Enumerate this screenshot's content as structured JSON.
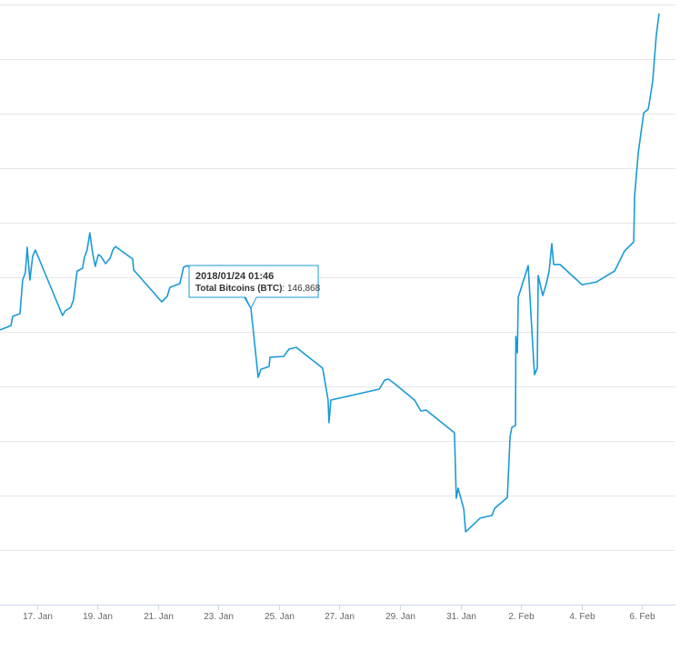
{
  "chart_data": {
    "type": "line",
    "x": [
      15.77,
      16.13,
      16.19,
      16.43,
      16.52,
      16.61,
      16.67,
      16.76,
      16.85,
      16.94,
      17.84,
      17.93,
      18.11,
      18.2,
      18.32,
      18.5,
      18.56,
      18.65,
      18.74,
      18.83,
      18.92,
      19.02,
      19.11,
      19.26,
      19.41,
      19.5,
      19.59,
      20.16,
      20.19,
      21.12,
      21.3,
      21.39,
      21.72,
      21.84,
      21.96,
      22.44,
      22.77,
      23.68,
      24.07,
      24.31,
      24.4,
      24.67,
      24.7,
      25.15,
      25.33,
      25.57,
      26.44,
      26.62,
      26.65,
      26.71,
      28.31,
      28.49,
      28.61,
      28.79,
      29.48,
      29.69,
      29.87,
      30.8,
      30.86,
      30.92,
      31.11,
      31.17,
      31.65,
      32.04,
      32.13,
      32.55,
      32.64,
      32.7,
      32.82,
      32.83,
      32.88,
      32.91,
      33.24,
      33.42,
      33.45,
      33.54,
      33.57,
      33.72,
      33.84,
      33.93,
      34.02,
      34.08,
      34.29,
      35.02,
      35.5,
      36.1,
      36.43,
      36.73,
      36.76,
      36.88,
      37.06,
      37.21,
      37.27,
      37.36,
      37.42,
      37.48,
      37.57
    ],
    "series": [
      {
        "name": "Total Bitcoins (BTC)",
        "color": "#1a9ad6",
        "values": [
          146070,
          146230,
          146570,
          146670,
          147900,
          148170,
          149100,
          147900,
          148770,
          149000,
          146600,
          146770,
          146900,
          147170,
          148230,
          148330,
          148730,
          149000,
          149630,
          148900,
          148400,
          148830,
          148770,
          148500,
          148700,
          149000,
          149130,
          148670,
          148270,
          147100,
          147300,
          147630,
          147770,
          148370,
          148430,
          148100,
          147570,
          147600,
          146868,
          144330,
          144630,
          144730,
          145070,
          145100,
          145370,
          145430,
          144670,
          143500,
          142670,
          143500,
          143900,
          144230,
          144270,
          144130,
          143500,
          143100,
          143130,
          142300,
          139900,
          140270,
          139500,
          138670,
          139170,
          139270,
          139530,
          139930,
          142170,
          142500,
          142570,
          145830,
          145230,
          147270,
          148430,
          144930,
          144430,
          144670,
          148070,
          147330,
          147770,
          148230,
          149230,
          148470,
          148470,
          147730,
          147830,
          148230,
          148970,
          149300,
          151000,
          152570,
          154030,
          154170,
          154570,
          155230,
          156100,
          156900,
          157670
        ]
      }
    ],
    "xlim": [
      15.77,
      38.11
    ],
    "xticks": [
      {
        "value": 17,
        "label": "17. Jan"
      },
      {
        "value": 19,
        "label": "19. Jan"
      },
      {
        "value": 21,
        "label": "21. Jan"
      },
      {
        "value": 23,
        "label": "23. Jan"
      },
      {
        "value": 25,
        "label": "25. Jan"
      },
      {
        "value": 27,
        "label": "27. Jan"
      },
      {
        "value": 29,
        "label": "29. Jan"
      },
      {
        "value": 31,
        "label": "31. Jan"
      },
      {
        "value": 33,
        "label": "2. Feb"
      },
      {
        "value": 35,
        "label": "4. Feb"
      },
      {
        "value": 37,
        "label": "6. Feb"
      }
    ],
    "ylim": [
      136000,
      158000
    ],
    "ygrid": [
      138000,
      140000,
      142000,
      144000,
      146000,
      148000,
      150000,
      152000,
      154000,
      156000,
      158000
    ],
    "tooltip": {
      "date": "2018/01/24 01:46",
      "label": "Total Bitcoins (BTC)",
      "value_label": "146,868",
      "point": 38
    }
  }
}
